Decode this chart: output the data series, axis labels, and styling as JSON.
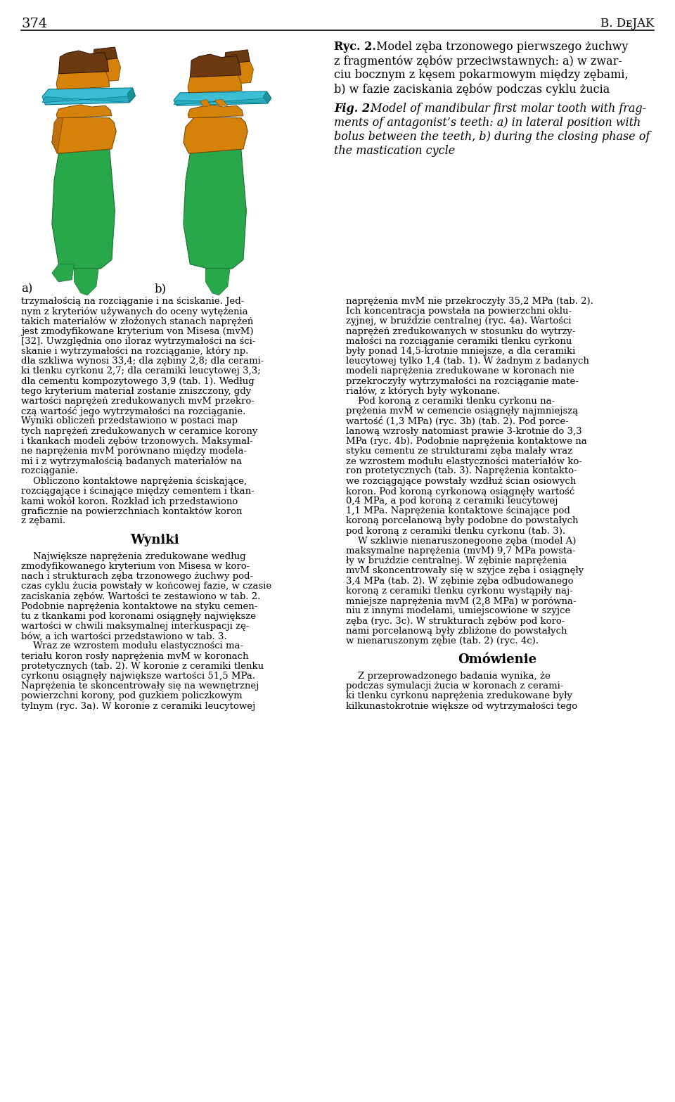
{
  "page_number": "374",
  "author_display": "B. DᴇJAK",
  "ryc_bold": "Ryc. 2.",
  "ryc_text_line1": " Model zęba trzonowego pierwszego żuchwy",
  "ryc_text_line2": "z fragmentów zębów przeciwstawnych: a) w zwar-",
  "ryc_text_line3": "ciu bocznym z kęsem pokarmowym między zębami,",
  "ryc_text_line4": "b) w fazie zaciskania zębów podczas cyklu żucia",
  "fig_bold": "Fig. 2.",
  "fig_text_line1": " Model of mandibular first molar tooth with frag-",
  "fig_text_line2": "ments of antagonist’s teeth: a) in lateral position with",
  "fig_text_line3": "bolus between the teeth, b) during the closing phase of",
  "fig_text_line4": "the mastication cycle",
  "label_a": "a)",
  "label_b": "b)",
  "col1_lines": [
    "trzymałością na rozciąganie i na ściskanie. Jed-",
    "nym z kryteriów używanych do oceny wytężenia",
    "takich materiałów w złożonych stanach naprężeń",
    "jest zmodyfikowane kryterium von Misesa (mvM)",
    "[32]. Uwzględnia ono iloraz wytrzymałości na ści-",
    "skanie i wytrzymałości na rozciąganie, który np.",
    "dla szkliwa wynosi 33,4; dla zębiny 2,8; dla cerami-",
    "ki tlenku cyrkonu 2,7; dla ceramiki leucytowej 3,3;",
    "dla cementu kompozytowego 3,9 (tab. 1). Według",
    "tego kryterium materiał zostanie zniszczony, gdy",
    "wartości naprężeń zredukowanych mvM przekro-",
    "czą wartość jego wytrzymałości na rozciąganie.",
    "Wyniki obliczeń przedstawiono w postaci map",
    "tych naprężeń zredukowanych w ceramice korony",
    "i tkankach modeli zębów trzonowych. Maksymal-",
    "ne naprężenia mvM porównano między modela-",
    "mi i z wytrzymałością badanych materiałów na",
    "rozciąganie.",
    "    Obliczono kontaktowe naprężenia ściskające,",
    "rozciągające i ścinające między cementem i tkan-",
    "kami wokół koron. Rozkład ich przedstawiono",
    "graficznie na powierzchniach kontaktów koron",
    "z zębami."
  ],
  "wyniki_header": "Wyniki",
  "wyniki_lines": [
    "    Największe naprężenia zredukowane według",
    "zmodyfikowanego kryterium von Misesa w koro-",
    "nach i strukturach zęba trzonowego żuchwy pod-",
    "czas cyklu żucia powstały w końcowej fazie, w czasie",
    "zaciskania zębów. Wartości te zestawiono w tab. 2.",
    "Podobnie naprężenia kontaktowe na styku cemen-",
    "tu z tkankami pod koronami osiągnęły największe",
    "wartości w chwili maksymalnej interkuspacji zę-",
    "bów, a ich wartości przedstawiono w tab. 3.",
    "    Wraz ze wzrostem modułu elastyczności ma-",
    "teriału koron rosły naprężenia mvM w koronach",
    "protetycznych (tab. 2). W koronie z ceramiki tlenku",
    "cyrkonu osiągnęły największe wartości 51,5 MPa.",
    "Naprężenia te skoncentrowały się na wewnętrznej",
    "powierzchni korony, pod guzkiem policzkowym",
    "tylnym (ryc. 3a). W koronie z ceramiki leucytowej"
  ],
  "col2_lines": [
    "naprężenia mvM nie przekroczyły 35,2 MPa (tab. 2).",
    "Ich koncentracja powstała na powierzchni oklu-",
    "zyjnej, w bruździe centralnej (ryc. 4a). Wartości",
    "naprężeń zredukowanych w stosunku do wytrzy-",
    "małości na rozciąganie ceramiki tlenku cyrkonu",
    "były ponad 14,5-krotnie mniejsze, a dla ceramiki",
    "leucytowej tylko 1,4 (tab. 1). W żadnym z badanych",
    "modeli naprężenia zredukowane w koronach nie",
    "przekroczyły wytrzymałości na rozciąganie mate-",
    "riałów, z których były wykonane.",
    "    Pod koroną z ceramiki tlenku cyrkonu na-",
    "prężenia mvM w cemencie osiągnęły najmniejszą",
    "wartość (1,3 MPa) (ryc. 3b) (tab. 2). Pod porce-",
    "lanową wzrosły natomiast prawie 3-krotnie do 3,3",
    "MPa (ryc. 4b). Podobnie naprężenia kontaktowe na",
    "styku cementu ze strukturami zęba malały wraz",
    "ze wzrostem modułu elastyczności materiałów ko-",
    "ron protetycznych (tab. 3). Naprężenia kontakto-",
    "we rozciągające powstały wzdłuż ścian osiowych",
    "koron. Pod koroną cyrkonową osiągnęły wartość",
    "0,4 MPa, a pod koroną z ceramiki leucytowej",
    "1,1 MPa. Naprężenia kontaktowe ścinające pod",
    "koroną porcelanową były podobne do powstałych",
    "pod koroną z ceramiki tlenku cyrkonu (tab. 3).",
    "    W szkliwie nienaruszonegoone zęba (model A)",
    "maksymalne naprężenia (mvM) 9,7 MPa powsta-",
    "ły w bruździe centralnej. W zębinie naprężenia",
    "mvM skoncentrowały się w szyjce zęba i osiągnęły",
    "3,4 MPa (tab. 2). W zębinie zęba odbudowanego",
    "koroną z ceramiki tlenku cyrkonu wystąpiły naj-",
    "mniejsze naprężenia mvM (2,8 MPa) w porówna-",
    "niu z innymi modelami, umiejscowione w szyjce",
    "zęba (ryc. 3c). W strukturach zębów pod koro-",
    "nami porcelanową były zbliżone do powstałych",
    "w nienaruszonym zębie (tab. 2) (ryc. 4c)."
  ],
  "omowienie_header": "Omówienie",
  "omowienie_lines": [
    "    Z przeprowadzonego badania wynika, że",
    "podczas symulacji żucia w koronach z cerami-",
    "ki tlenku cyrkonu naprężenia zredukowane były",
    "kilkunastokrotnie większe od wytrzymałości tego"
  ],
  "background_color": "#ffffff",
  "text_color": "#000000",
  "tooth_orange": "#d4820a",
  "tooth_brown": "#6b3a10",
  "tooth_cyan": "#3bbdd4",
  "tooth_green": "#28a84a",
  "tooth_green_dark": "#1a7030",
  "tooth_orange_dark": "#7a4a00",
  "tooth_brown_dark": "#2a1000"
}
